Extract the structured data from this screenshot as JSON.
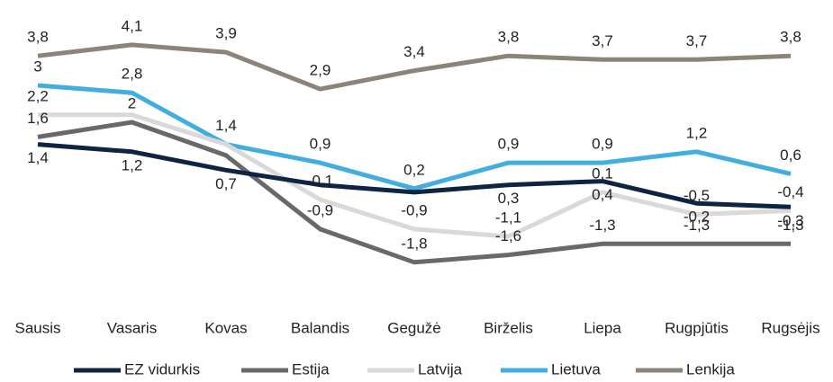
{
  "chart_data": {
    "type": "line",
    "categories": [
      "Sausis",
      "Vasaris",
      "Kovas",
      "Balandis",
      "Gegužė",
      "Birželis",
      "Liepa",
      "Rugpjūtis",
      "Rugsėjis"
    ],
    "ylim": [
      -2.5,
      4.5
    ],
    "grid": false,
    "legend": "bottom",
    "series": [
      {
        "name": "EZ vidurkis",
        "color": "#0d2444",
        "values": [
          1.4,
          1.2,
          0.7,
          0.3,
          0.1,
          0.3,
          0.4,
          -0.2,
          -0.3
        ],
        "value_labels": [
          "1,4",
          "1,2",
          "0,7",
          null,
          null,
          "0,3",
          "0,4",
          "-0,2",
          "-0,3"
        ]
      },
      {
        "name": "Estija",
        "color": "#69686b",
        "values": [
          1.6,
          2,
          1.1,
          -0.9,
          -1.8,
          -1.6,
          -1.3,
          -1.3,
          -1.3
        ],
        "value_labels": [
          "1,6",
          "2",
          null,
          "-0,9",
          "-1,8",
          "-1,6",
          "-1,3",
          "-1,3",
          "-1,3"
        ]
      },
      {
        "name": "Latvija",
        "color": "#d9d9d9",
        "values": [
          2.2,
          2.2,
          1.4,
          -0.1,
          -0.9,
          -1.1,
          0.1,
          -0.5,
          -0.4
        ],
        "value_labels": [
          "2,2",
          null,
          null,
          "-0,1",
          "-0,9",
          "-1,1",
          "0,1",
          "-0,5",
          "-0,4"
        ]
      },
      {
        "name": "Lietuva",
        "color": "#41aedf",
        "values": [
          3,
          2.8,
          1.4,
          0.9,
          0.2,
          0.9,
          0.9,
          1.2,
          0.6
        ],
        "value_labels": [
          "3",
          "2,8",
          "1,4",
          "0,9",
          "0,2",
          "0,9",
          "0,9",
          "1,2",
          "0,6"
        ]
      },
      {
        "name": "Lenkija",
        "color": "#8c8577",
        "values": [
          3.8,
          4.1,
          3.9,
          2.9,
          3.4,
          3.8,
          3.7,
          3.7,
          3.8
        ],
        "value_labels": [
          "3,8",
          "4,1",
          "3,9",
          "2,9",
          "3,4",
          "3,8",
          "3,7",
          "3,7",
          "3,8"
        ]
      }
    ]
  }
}
